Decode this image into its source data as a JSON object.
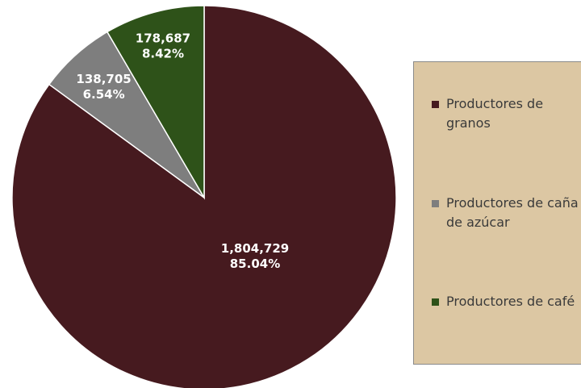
{
  "chart_data": {
    "type": "pie",
    "title": "",
    "slices": [
      {
        "name": "Productores de granos",
        "value": 1804729,
        "value_label": "1,804,729",
        "percent_label": "85.04%",
        "percent": 85.04,
        "color": "#461a1f"
      },
      {
        "name": "Productores de caña de azúcar",
        "value": 138705,
        "value_label": "138,705",
        "percent_label": "6.54%",
        "percent": 6.54,
        "color": "#7e7e7e"
      },
      {
        "name": "Productores de café",
        "value": 178687,
        "value_label": "178,687",
        "percent_label": "8.42%",
        "percent": 8.42,
        "color": "#2e5219"
      }
    ],
    "legend": {
      "position": "right",
      "background": "#dcc7a3",
      "items": [
        {
          "label": "Productores de granos",
          "color": "#461a1f"
        },
        {
          "label": "Productores de caña de azúcar",
          "color": "#7e7e7e"
        },
        {
          "label": "Productores de café",
          "color": "#2e5219"
        }
      ]
    }
  }
}
